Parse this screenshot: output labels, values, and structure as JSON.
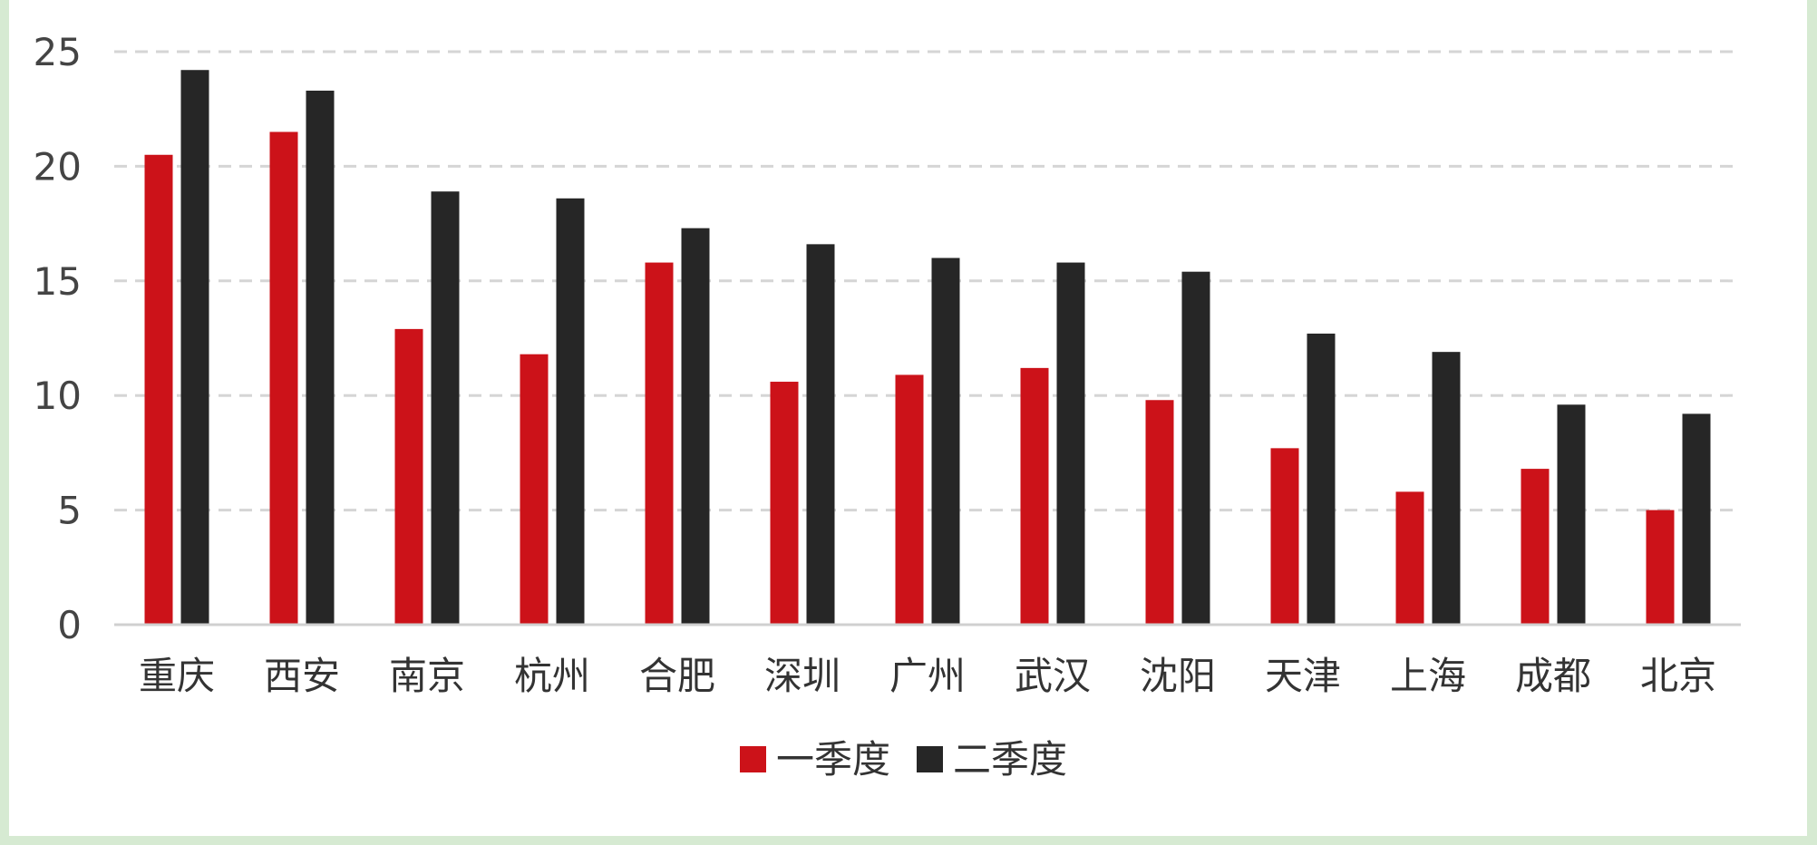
{
  "chart_data": {
    "type": "bar",
    "categories": [
      "重庆",
      "西安",
      "南京",
      "杭州",
      "合肥",
      "深圳",
      "广州",
      "武汉",
      "沈阳",
      "天津",
      "上海",
      "成都",
      "北京"
    ],
    "series": [
      {
        "name": "一季度",
        "color": "#cc1219",
        "values": [
          20.5,
          21.5,
          12.9,
          11.8,
          15.8,
          10.6,
          10.9,
          11.2,
          9.8,
          7.7,
          5.8,
          6.8,
          5.0
        ]
      },
      {
        "name": "二季度",
        "color": "#262626",
        "values": [
          24.2,
          23.3,
          18.9,
          18.6,
          17.3,
          16.6,
          16.0,
          15.8,
          15.4,
          12.7,
          11.9,
          9.6,
          9.2
        ]
      }
    ],
    "yticks": [
      "0",
      "5",
      "10",
      "15",
      "20",
      "25"
    ],
    "ylim": [
      0,
      25
    ],
    "grid": true,
    "legend_position": "bottom"
  }
}
